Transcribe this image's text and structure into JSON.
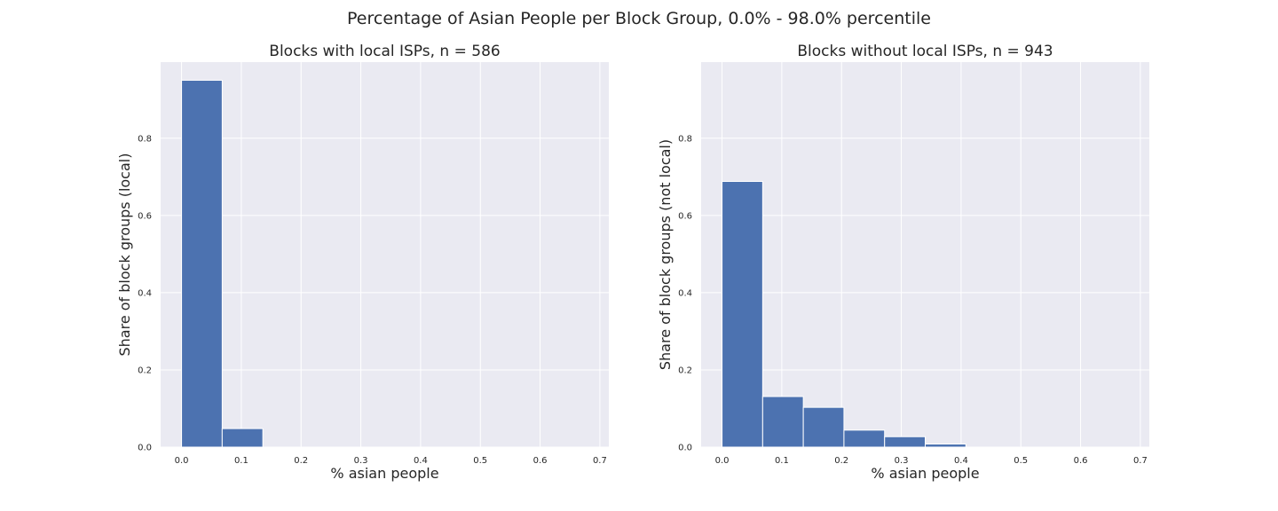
{
  "figure": {
    "suptitle": "Percentage of Asian People per Block Group, 0.0% - 98.0% percentile",
    "colors": {
      "background": "#eaeaf2",
      "bar": "#4c72b0",
      "grid": "#ffffff",
      "text": "#262626"
    }
  },
  "chart_data": [
    {
      "type": "bar",
      "title": "Blocks with local ISPs, n = 586",
      "xlabel": "% asian people",
      "ylabel": "Share of block groups (local)",
      "xlim": [
        -0.035,
        0.715
      ],
      "ylim": [
        0,
        0.997
      ],
      "xticks": [
        0.0,
        0.1,
        0.2,
        0.3,
        0.4,
        0.5,
        0.6,
        0.7
      ],
      "xtick_labels": [
        "0.0",
        "0.1",
        "0.2",
        "0.3",
        "0.4",
        "0.5",
        "0.6",
        "0.7"
      ],
      "yticks": [
        0.0,
        0.2,
        0.4,
        0.6,
        0.8
      ],
      "ytick_labels": [
        "0.0",
        "0.2",
        "0.4",
        "0.6",
        "0.8"
      ],
      "grid": true,
      "bin_edges": [
        0.0,
        0.068,
        0.136,
        0.204,
        0.272,
        0.34,
        0.408,
        0.476,
        0.544,
        0.612,
        0.68
      ],
      "values": [
        0.95,
        0.048,
        0,
        0,
        0,
        0,
        0,
        0,
        0,
        0
      ]
    },
    {
      "type": "bar",
      "title": "Blocks without local ISPs, n = 943",
      "xlabel": "% asian people",
      "ylabel": "Share of block groups (not local)",
      "xlim": [
        -0.035,
        0.715
      ],
      "ylim": [
        0,
        0.997
      ],
      "xticks": [
        0.0,
        0.1,
        0.2,
        0.3,
        0.4,
        0.5,
        0.6,
        0.7
      ],
      "xtick_labels": [
        "0.0",
        "0.1",
        "0.2",
        "0.3",
        "0.4",
        "0.5",
        "0.6",
        "0.7"
      ],
      "yticks": [
        0.0,
        0.2,
        0.4,
        0.6,
        0.8
      ],
      "ytick_labels": [
        "0.0",
        "0.2",
        "0.4",
        "0.6",
        "0.8"
      ],
      "grid": true,
      "bin_edges": [
        0.0,
        0.068,
        0.136,
        0.204,
        0.272,
        0.34,
        0.408,
        0.476,
        0.544,
        0.612,
        0.68
      ],
      "values": [
        0.688,
        0.131,
        0.103,
        0.044,
        0.027,
        0.008,
        0,
        0,
        0,
        0
      ]
    }
  ]
}
